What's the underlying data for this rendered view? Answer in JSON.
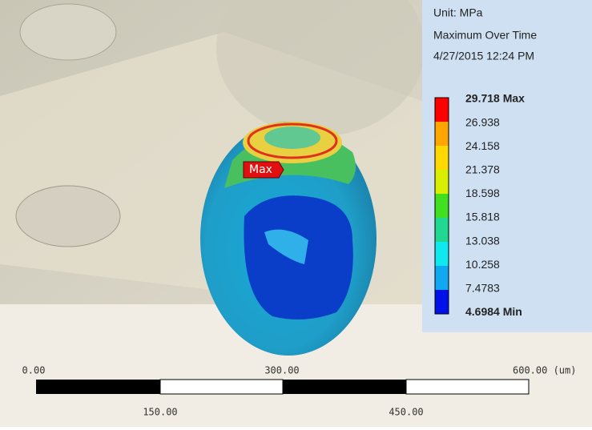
{
  "legend": {
    "unit": "Unit: MPa",
    "title": "Maximum Over Time",
    "date": "4/27/2015 12:24 PM",
    "entries": [
      "29.718 Max",
      "26.938",
      "24.158",
      "21.378",
      "18.598",
      "15.818",
      "13.038",
      "10.258",
      "7.4783",
      "4.6984 Min"
    ]
  },
  "probe": {
    "label": "Max"
  },
  "scale_bar": {
    "top_labels": [
      "0.00",
      "300.00",
      "600.00 (um)"
    ],
    "bottom_labels": [
      "150.00",
      "450.00"
    ]
  }
}
